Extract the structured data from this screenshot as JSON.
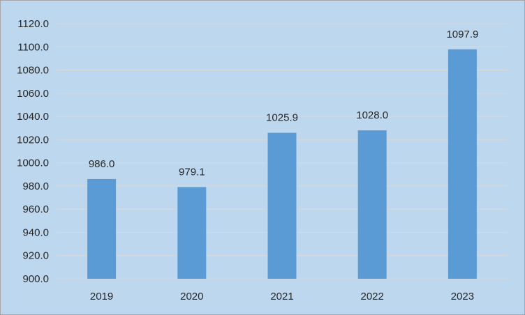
{
  "chart_data": {
    "type": "bar",
    "title": "",
    "xlabel": "",
    "ylabel": "",
    "categories": [
      "2019",
      "2020",
      "2021",
      "2022",
      "2023"
    ],
    "values": [
      986.0,
      979.1,
      1025.9,
      1028.0,
      1097.9
    ],
    "data_labels": [
      "986.0",
      "979.1",
      "1025.9",
      "1028.0",
      "1097.9"
    ],
    "ylim": [
      900,
      1120
    ],
    "yticks": [
      900,
      920,
      940,
      960,
      980,
      1000,
      1020,
      1040,
      1060,
      1080,
      1100,
      1120
    ],
    "ytick_labels": [
      "900.0",
      "920.0",
      "940.0",
      "960.0",
      "980.0",
      "1000.0",
      "1020.0",
      "1040.0",
      "1060.0",
      "1080.0",
      "1100.0",
      "1120.0"
    ],
    "grid": true,
    "legend": "none",
    "colors": {
      "background": "#bdd7ee",
      "bar": "#5b9bd5",
      "gridline": "#d9d9d9",
      "text": "#262626"
    }
  }
}
